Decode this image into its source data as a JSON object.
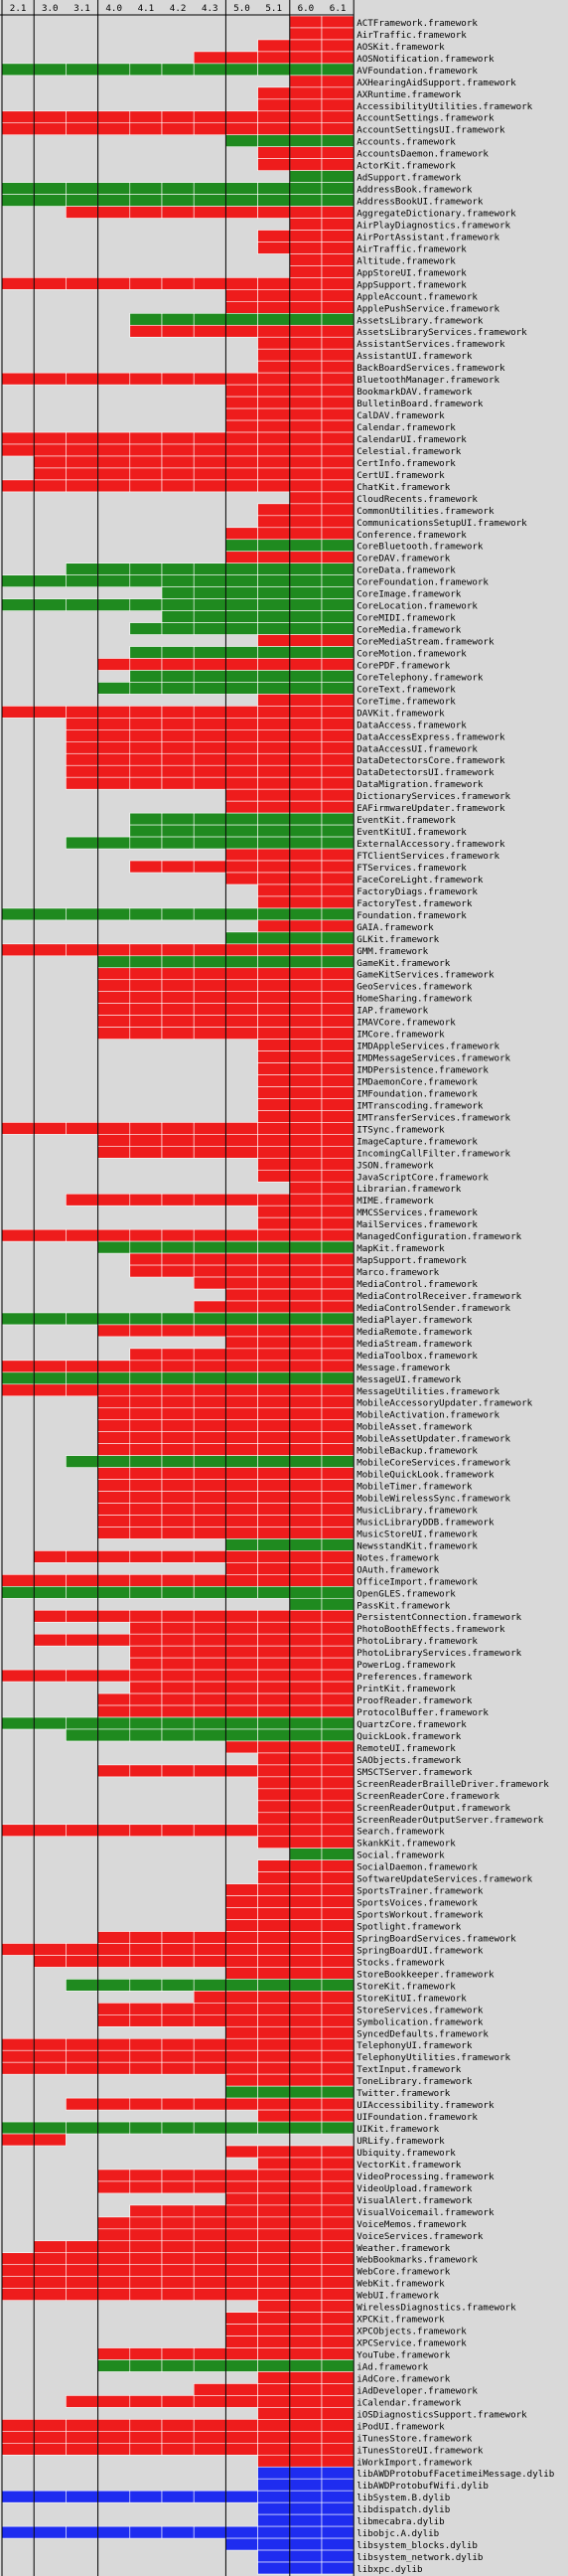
{
  "chart_data": {
    "type": "heatmap",
    "title": "",
    "xlabel": "",
    "ylabel": "",
    "versions": [
      "2.1",
      "3.0",
      "3.1",
      "4.0",
      "4.1",
      "4.2",
      "4.3",
      "5.0",
      "5.1",
      "6.0",
      "6.1"
    ],
    "version_groups": [
      [
        "2.1"
      ],
      [
        "3.0",
        "3.1"
      ],
      [
        "4.0",
        "4.1",
        "4.2",
        "4.3"
      ],
      [
        "5.0",
        "5.1"
      ],
      [
        "6.0",
        "6.1"
      ]
    ],
    "colors": {
      "0": "#d9d9d9",
      "1": "#ee1c1c",
      "2": "#1f8a1f",
      "3": "#1e2cf0"
    },
    "legend": "none",
    "rows": [
      [
        "ACTFramework.framework",
        "00000000011"
      ],
      [
        "AirTraffic.framework",
        "00000000011"
      ],
      [
        "AOSKit.framework",
        "00000000111"
      ],
      [
        "AOSNotification.framework",
        "00000011111"
      ],
      [
        "AVFoundation.framework",
        "22222222222"
      ],
      [
        "AXHearingAidSupport.framework",
        "00000000011"
      ],
      [
        "AXRuntime.framework",
        "00000000111"
      ],
      [
        "AccessibilityUtilities.framework",
        "00000000111"
      ],
      [
        "AccountSettings.framework",
        "11111111111"
      ],
      [
        "AccountSettingsUI.framework",
        "11111111111"
      ],
      [
        "Accounts.framework",
        "00000002222"
      ],
      [
        "AccountsDaemon.framework",
        "00000000111"
      ],
      [
        "ActorKit.framework",
        "00000000111"
      ],
      [
        "AdSupport.framework",
        "00000000022"
      ],
      [
        "AddressBook.framework",
        "22222222222"
      ],
      [
        "AddressBookUI.framework",
        "22222222222"
      ],
      [
        "AggregateDictionary.framework",
        "00111111111"
      ],
      [
        "AirPlayDiagnostics.framework",
        "00000000011"
      ],
      [
        "AirPortAssistant.framework",
        "00000000111"
      ],
      [
        "AirTraffic.framework",
        "00000000111"
      ],
      [
        "Altitude.framework",
        "00000000011"
      ],
      [
        "AppStoreUI.framework",
        "00000000011"
      ],
      [
        "AppSupport.framework",
        "11111111111"
      ],
      [
        "AppleAccount.framework",
        "00000001111"
      ],
      [
        "ApplePushService.framework",
        "00000001111"
      ],
      [
        "AssetsLibrary.framework",
        "00002222222"
      ],
      [
        "AssetsLibraryServices.framework",
        "00001111111"
      ],
      [
        "AssistantServices.framework",
        "00000000111"
      ],
      [
        "AssistantUI.framework",
        "00000000111"
      ],
      [
        "BackBoardServices.framework",
        "00000000111"
      ],
      [
        "BluetoothManager.framework",
        "11111111111"
      ],
      [
        "BookmarkDAV.framework",
        "00000001111"
      ],
      [
        "BulletinBoard.framework",
        "00000001111"
      ],
      [
        "CalDAV.framework",
        "00000001111"
      ],
      [
        "Calendar.framework",
        "00000001111"
      ],
      [
        "CalendarUI.framework",
        "11111111111"
      ],
      [
        "Celestial.framework",
        "11111111111"
      ],
      [
        "CertInfo.framework",
        "01111111111"
      ],
      [
        "CertUI.framework",
        "01111111111"
      ],
      [
        "ChatKit.framework",
        "11111111111"
      ],
      [
        "CloudRecents.framework",
        "00000000011"
      ],
      [
        "CommonUtilities.framework",
        "00000000111"
      ],
      [
        "CommunicationsSetupUI.framework",
        "00000000111"
      ],
      [
        "Conference.framework",
        "00000001111"
      ],
      [
        "CoreBluetooth.framework",
        "00000002222"
      ],
      [
        "CoreDAV.framework",
        "00000001111"
      ],
      [
        "CoreData.framework",
        "00222222222"
      ],
      [
        "CoreFoundation.framework",
        "22222222222"
      ],
      [
        "CoreImage.framework",
        "00000222222"
      ],
      [
        "CoreLocation.framework",
        "22222222222"
      ],
      [
        "CoreMIDI.framework",
        "00000222222"
      ],
      [
        "CoreMedia.framework",
        "00002222222"
      ],
      [
        "CoreMediaStream.framework",
        "00000000111"
      ],
      [
        "CoreMotion.framework",
        "00002222222"
      ],
      [
        "CorePDF.framework",
        "00011111111"
      ],
      [
        "CoreTelephony.framework",
        "00002222222"
      ],
      [
        "CoreText.framework",
        "00022222222"
      ],
      [
        "CoreTime.framework",
        "00000000111"
      ],
      [
        "DAVKit.framework",
        "11111111111"
      ],
      [
        "DataAccess.framework",
        "00111111111"
      ],
      [
        "DataAccessExpress.framework",
        "00111111111"
      ],
      [
        "DataAccessUI.framework",
        "00111111111"
      ],
      [
        "DataDetectorsCore.framework",
        "00111111111"
      ],
      [
        "DataDetectorsUI.framework",
        "00111111111"
      ],
      [
        "DataMigration.framework",
        "00111111111"
      ],
      [
        "DictionaryServices.framework",
        "00000001111"
      ],
      [
        "EAFirmwareUpdater.framework",
        "00000001111"
      ],
      [
        "EventKit.framework",
        "00002222222"
      ],
      [
        "EventKitUI.framework",
        "00002222222"
      ],
      [
        "ExternalAccessory.framework",
        "00222222222"
      ],
      [
        "FTClientServices.framework",
        "00000001111"
      ],
      [
        "FTServices.framework",
        "00001111111"
      ],
      [
        "FaceCoreLight.framework",
        "00000001111"
      ],
      [
        "FactoryDiags.framework",
        "00000000111"
      ],
      [
        "FactoryTest.framework",
        "00000000111"
      ],
      [
        "Foundation.framework",
        "22222222222"
      ],
      [
        "GAIA.framework",
        "00000000111"
      ],
      [
        "GLKit.framework",
        "00000002222"
      ],
      [
        "GMM.framework",
        "11111111111"
      ],
      [
        "GameKit.framework",
        "00022222222"
      ],
      [
        "GameKitServices.framework",
        "00011111111"
      ],
      [
        "GeoServices.framework",
        "00011111111"
      ],
      [
        "HomeSharing.framework",
        "00011111111"
      ],
      [
        "IAP.framework",
        "00011111111"
      ],
      [
        "IMAVCore.framework",
        "00011111111"
      ],
      [
        "IMCore.framework",
        "00011111111"
      ],
      [
        "IMDAppleServices.framework",
        "00000000111"
      ],
      [
        "IMDMessageServices.framework",
        "00000000111"
      ],
      [
        "IMDPersistence.framework",
        "00000000111"
      ],
      [
        "IMDaemonCore.framework",
        "00000000111"
      ],
      [
        "IMFoundation.framework",
        "00000000111"
      ],
      [
        "IMTranscoding.framework",
        "00000000111"
      ],
      [
        "IMTransferServices.framework",
        "00000000111"
      ],
      [
        "ITSync.framework",
        "11111111111"
      ],
      [
        "ImageCapture.framework",
        "00011111111"
      ],
      [
        "IncomingCallFilter.framework",
        "00011111111"
      ],
      [
        "JSON.framework",
        "00000000111"
      ],
      [
        "JavaScriptCore.framework",
        "00000000111"
      ],
      [
        "Librarian.framework",
        "00000000011"
      ],
      [
        "MIME.framework",
        "00111111111"
      ],
      [
        "MMCSServices.framework",
        "00000000111"
      ],
      [
        "MailServices.framework",
        "00000000111"
      ],
      [
        "ManagedConfiguration.framework",
        "11111111111"
      ],
      [
        "MapKit.framework",
        "00022222222"
      ],
      [
        "MapSupport.framework",
        "00001111111"
      ],
      [
        "Marco.framework",
        "00001111111"
      ],
      [
        "MediaControl.framework",
        "00000011111"
      ],
      [
        "MediaControlReceiver.framework",
        "00000001111"
      ],
      [
        "MediaControlSender.framework",
        "00000011111"
      ],
      [
        "MediaPlayer.framework",
        "22222222222"
      ],
      [
        "MediaRemote.framework",
        "00011111111"
      ],
      [
        "MediaStream.framework",
        "00000001111"
      ],
      [
        "MediaToolbox.framework",
        "00001111111"
      ],
      [
        "Message.framework",
        "11111111111"
      ],
      [
        "MessageUI.framework",
        "22222222222"
      ],
      [
        "MessageUtilities.framework",
        "11111111111"
      ],
      [
        "MobileAccessoryUpdater.framework",
        "00011111111"
      ],
      [
        "MobileActivation.framework",
        "00011111111"
      ],
      [
        "MobileAsset.framework",
        "00011111111"
      ],
      [
        "MobileAssetUpdater.framework",
        "00011111111"
      ],
      [
        "MobileBackup.framework",
        "00011111111"
      ],
      [
        "MobileCoreServices.framework",
        "00222222222"
      ],
      [
        "MobileQuickLook.framework",
        "00011111111"
      ],
      [
        "MobileTimer.framework",
        "00011111111"
      ],
      [
        "MobileWirelessSync.framework",
        "00011111111"
      ],
      [
        "MusicLibrary.framework",
        "00011111111"
      ],
      [
        "MusicLibraryDDB.framework",
        "00011111111"
      ],
      [
        "MusicStoreUI.framework",
        "00011111111"
      ],
      [
        "NewsstandKit.framework",
        "00000002222"
      ],
      [
        "Notes.framework",
        "01111111111"
      ],
      [
        "OAuth.framework",
        "00000001111"
      ],
      [
        "OfficeImport.framework",
        "11111111111"
      ],
      [
        "OpenGLES.framework",
        "22222222222"
      ],
      [
        "PassKit.framework",
        "00000000022"
      ],
      [
        "PersistentConnection.framework",
        "01111111111"
      ],
      [
        "PhotoBoothEffects.framework",
        "00001111111"
      ],
      [
        "PhotoLibrary.framework",
        "01111111111"
      ],
      [
        "PhotoLibraryServices.framework",
        "00001111111"
      ],
      [
        "PowerLog.framework",
        "00001111111"
      ],
      [
        "Preferences.framework",
        "11111111111"
      ],
      [
        "PrintKit.framework",
        "00001111111"
      ],
      [
        "ProofReader.framework",
        "00011111111"
      ],
      [
        "ProtocolBuffer.framework",
        "00011111111"
      ],
      [
        "QuartzCore.framework",
        "22222222222"
      ],
      [
        "QuickLook.framework",
        "00222222222"
      ],
      [
        "RemoteUI.framework",
        "00000001111"
      ],
      [
        "SAObjects.framework",
        "00000000111"
      ],
      [
        "SMSCTServer.framework",
        "00011111111"
      ],
      [
        "ScreenReaderBrailleDriver.framework",
        "00000000111"
      ],
      [
        "ScreenReaderCore.framework",
        "00000000111"
      ],
      [
        "ScreenReaderOutput.framework",
        "00000000111"
      ],
      [
        "ScreenReaderOutputServer.framework",
        "00000000111"
      ],
      [
        "Search.framework",
        "11111111111"
      ],
      [
        "SkankKit.framework",
        "00000000111"
      ],
      [
        "Social.framework",
        "00000000022"
      ],
      [
        "SocialDaemon.framework",
        "00000000111"
      ],
      [
        "SoftwareUpdateServices.framework",
        "00000000111"
      ],
      [
        "SportsTrainer.framework",
        "00000001111"
      ],
      [
        "SportsVoices.framework",
        "00000001111"
      ],
      [
        "SportsWorkout.framework",
        "00000001111"
      ],
      [
        "Spotlight.framework",
        "00000001111"
      ],
      [
        "SpringBoardServices.framework",
        "00011111111"
      ],
      [
        "SpringBoardUI.framework",
        "11111111111"
      ],
      [
        "Stocks.framework",
        "01111111111"
      ],
      [
        "StoreBookkeeper.framework",
        "00000001111"
      ],
      [
        "StoreKit.framework",
        "00222222222"
      ],
      [
        "StoreKitUI.framework",
        "00000011111"
      ],
      [
        "StoreServices.framework",
        "00011111111"
      ],
      [
        "Symbolication.framework",
        "00011111111"
      ],
      [
        "SyncedDefaults.framework",
        "00000001111"
      ],
      [
        "TelephonyUI.framework",
        "11111111111"
      ],
      [
        "TelephonyUtilities.framework",
        "11111111111"
      ],
      [
        "TextInput.framework",
        "11111111111"
      ],
      [
        "ToneLibrary.framework",
        "00000001111"
      ],
      [
        "Twitter.framework",
        "00000002222"
      ],
      [
        "UIAccessibility.framework",
        "00111111111"
      ],
      [
        "UIFoundation.framework",
        "00000000111"
      ],
      [
        "UIKit.framework",
        "22222222222"
      ],
      [
        "URLify.framework",
        "11000000000"
      ],
      [
        "Ubiquity.framework",
        "00000001111"
      ],
      [
        "VectorKit.framework",
        "00000000111"
      ],
      [
        "VideoProcessing.framework",
        "00011111111"
      ],
      [
        "VideoUpload.framework",
        "00011111111"
      ],
      [
        "VisualAlert.framework",
        "00000001111"
      ],
      [
        "VisualVoicemail.framework",
        "00001111111"
      ],
      [
        "VoiceMemos.framework",
        "00011111111"
      ],
      [
        "VoiceServices.framework",
        "00011111111"
      ],
      [
        "Weather.framework",
        "01111111111"
      ],
      [
        "WebBookmarks.framework",
        "11111111111"
      ],
      [
        "WebCore.framework",
        "11111111111"
      ],
      [
        "WebKit.framework",
        "11111111111"
      ],
      [
        "WebUI.framework",
        "11111111111"
      ],
      [
        "WirelessDiagnostics.framework",
        "00000000111"
      ],
      [
        "XPCKit.framework",
        "00000001111"
      ],
      [
        "XPCObjects.framework",
        "00000001111"
      ],
      [
        "XPCService.framework",
        "00000001111"
      ],
      [
        "YouTube.framework",
        "00011111111"
      ],
      [
        "iAd.framework",
        "00022222222"
      ],
      [
        "iAdCore.framework",
        "00000000111"
      ],
      [
        "iAdDeveloper.framework",
        "00000011111"
      ],
      [
        "iCalendar.framework",
        "00111111111"
      ],
      [
        "iOSDiagnosticsSupport.framework",
        "00000000111"
      ],
      [
        "iPodUI.framework",
        "11111111111"
      ],
      [
        "iTunesStore.framework",
        "11111111111"
      ],
      [
        "iTunesStoreUI.framework",
        "11111111111"
      ],
      [
        "iWorkImport.framework",
        "00000000111"
      ],
      [
        "libAWDProtobufFacetimeiMessage.dylib",
        "00000000333"
      ],
      [
        "libAWDProtobufWifi.dylib",
        "00000000333"
      ],
      [
        "libSystem.B.dylib",
        "33333333333"
      ],
      [
        "libdispatch.dylib",
        "00000000333"
      ],
      [
        "libmecabra.dylib",
        "00000000333"
      ],
      [
        "libobjc.A.dylib",
        "33333333333"
      ],
      [
        "libsystem_blocks.dylib",
        "00000003333"
      ],
      [
        "libsystem_network.dylib",
        "00000000333"
      ],
      [
        "libxpc.dylib",
        "00000000333"
      ]
    ]
  }
}
